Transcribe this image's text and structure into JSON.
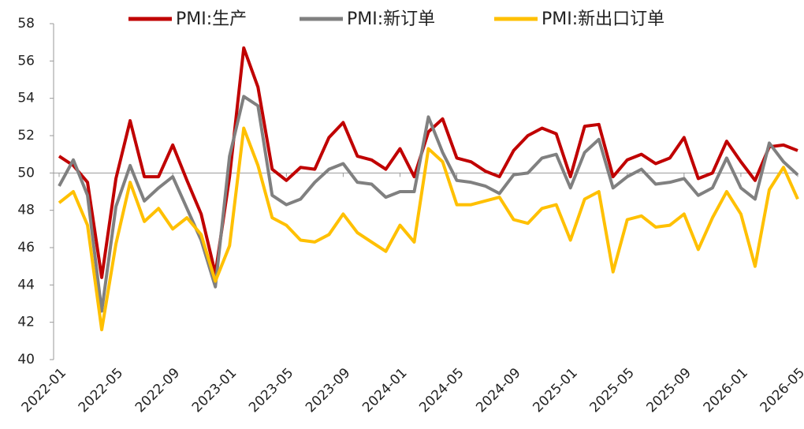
{
  "chart_data": {
    "type": "line",
    "categories": [
      "2022-01",
      null,
      null,
      null,
      "2022-05",
      null,
      null,
      null,
      "2022-09",
      null,
      null,
      null,
      "2023-01",
      null,
      null,
      null,
      "2023-05",
      null,
      null,
      null,
      "2023-09",
      null,
      null,
      null,
      "2024-01",
      null,
      null,
      null,
      "2024-05",
      null,
      null,
      null,
      "2024-09",
      null,
      null,
      null,
      "2025-01",
      null,
      null,
      null,
      "2025-05",
      null,
      null,
      null,
      "2025-09",
      null,
      null,
      null,
      "2026-01",
      null,
      null,
      null,
      "2026-05"
    ],
    "series": [
      {
        "name": "PMI:生产",
        "color": "#c00000",
        "values": [
          50.9,
          50.4,
          49.5,
          44.4,
          49.7,
          52.8,
          49.8,
          49.8,
          51.5,
          49.6,
          47.8,
          44.6,
          49.8,
          56.7,
          54.6,
          50.2,
          49.6,
          50.3,
          50.2,
          51.9,
          52.7,
          50.9,
          50.7,
          50.2,
          51.3,
          49.8,
          52.2,
          52.9,
          50.8,
          50.6,
          50.1,
          49.8,
          51.2,
          52.0,
          52.4,
          52.1,
          49.8,
          52.5,
          52.6,
          49.8,
          50.7,
          51.0,
          50.5,
          50.8,
          51.9,
          49.7,
          50.0,
          51.7,
          50.6,
          49.6,
          51.4,
          51.5,
          51.2
        ]
      },
      {
        "name": "PMI:新订单",
        "color": "#808080",
        "values": [
          49.3,
          50.7,
          48.8,
          42.6,
          48.2,
          50.4,
          48.5,
          49.2,
          49.8,
          48.1,
          46.4,
          43.9,
          50.9,
          54.1,
          53.6,
          48.8,
          48.3,
          48.6,
          49.5,
          50.2,
          50.5,
          49.5,
          49.4,
          48.7,
          49.0,
          49.0,
          53.0,
          51.1,
          49.6,
          49.5,
          49.3,
          48.9,
          49.9,
          50.0,
          50.8,
          51.0,
          49.2,
          51.1,
          51.8,
          49.2,
          49.8,
          50.2,
          49.4,
          49.5,
          49.7,
          48.8,
          49.2,
          50.8,
          49.2,
          48.6,
          51.6,
          50.6,
          49.9
        ]
      },
      {
        "name": "PMI:新出口订单",
        "color": "#ffc000",
        "values": [
          48.4,
          49.0,
          47.2,
          41.6,
          46.2,
          49.5,
          47.4,
          48.1,
          47.0,
          47.6,
          46.7,
          44.2,
          46.1,
          52.4,
          50.4,
          47.6,
          47.2,
          46.4,
          46.3,
          46.7,
          47.8,
          46.8,
          46.3,
          45.8,
          47.2,
          46.3,
          51.3,
          50.6,
          48.3,
          48.3,
          48.5,
          48.7,
          47.5,
          47.3,
          48.1,
          48.3,
          46.4,
          48.6,
          49.0,
          44.7,
          47.5,
          47.7,
          47.1,
          47.2,
          47.8,
          45.9,
          47.6,
          49.0,
          47.8,
          45.0,
          49.1,
          50.3,
          48.6
        ]
      }
    ],
    "ylim": [
      40,
      58
    ],
    "yticks": [
      40,
      42,
      44,
      46,
      48,
      50,
      52,
      54,
      56,
      58
    ],
    "baseline": 50,
    "legend": "top"
  }
}
